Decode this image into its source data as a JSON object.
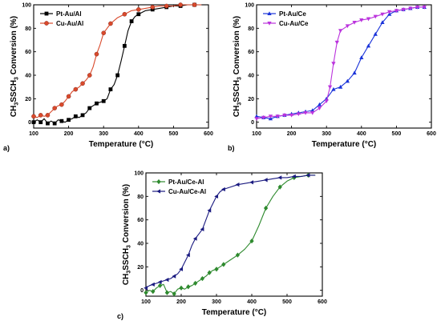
{
  "chart_data": [
    {
      "type": "line",
      "panel_label": "a)",
      "xlabel": "Temperature (°C)",
      "ylabel": "CH3SSCH3 Conversion (%)",
      "ylabel_parts": [
        "CH",
        "3",
        "SSCH",
        "3",
        " Conversion (%)"
      ],
      "xlim": [
        100,
        600
      ],
      "ylim": [
        -5,
        100
      ],
      "xticks": [
        100,
        200,
        300,
        400,
        500,
        600
      ],
      "yticks": [
        0,
        20,
        40,
        60,
        80,
        100
      ],
      "grid": false,
      "legend_position": "top-left",
      "series": [
        {
          "name": "Pt-Au/Al",
          "color": "#000000",
          "marker": "square",
          "x": [
            100,
            110,
            120,
            130,
            140,
            150,
            160,
            170,
            180,
            190,
            200,
            210,
            220,
            230,
            240,
            250,
            260,
            270,
            280,
            290,
            300,
            310,
            320,
            330,
            340,
            350,
            360,
            370,
            380,
            390,
            400,
            420,
            440,
            460,
            480,
            500,
            520,
            540,
            560,
            580
          ],
          "y": [
            0,
            2,
            0,
            3,
            -1,
            1,
            -1,
            2,
            1,
            0,
            2,
            3,
            5,
            4,
            6,
            8,
            12,
            14,
            16,
            17,
            18,
            20,
            28,
            32,
            40,
            52,
            65,
            78,
            86,
            90,
            92,
            95,
            96,
            97,
            98,
            99,
            99,
            100,
            100,
            100
          ]
        },
        {
          "name": "Cu-Au/Al",
          "color": "#d94a2c",
          "marker": "circle",
          "x": [
            100,
            110,
            120,
            130,
            140,
            150,
            160,
            170,
            180,
            190,
            200,
            210,
            220,
            230,
            240,
            250,
            260,
            270,
            280,
            290,
            300,
            310,
            320,
            340,
            360,
            380,
            400,
            420,
            440,
            460,
            480,
            500,
            520,
            540,
            560,
            580
          ],
          "y": [
            5,
            4,
            6,
            5,
            6,
            9,
            12,
            14,
            15,
            18,
            22,
            26,
            28,
            30,
            33,
            36,
            40,
            47,
            58,
            66,
            76,
            80,
            84,
            89,
            92,
            95,
            96,
            97,
            98,
            99,
            99,
            99,
            100,
            100,
            100,
            100
          ]
        }
      ]
    },
    {
      "type": "line",
      "panel_label": "b)",
      "xlabel": "Temperature (°C)",
      "ylabel": "CH3SSCH3 Conversion (%)",
      "ylabel_parts": [
        "CH",
        "3",
        "SSCH",
        "3",
        " Conversion (%)"
      ],
      "xlim": [
        100,
        600
      ],
      "ylim": [
        -5,
        100
      ],
      "xticks": [
        100,
        200,
        300,
        400,
        500,
        600
      ],
      "yticks": [
        0,
        20,
        40,
        60,
        80,
        100
      ],
      "grid": false,
      "legend_position": "top-left",
      "series": [
        {
          "name": "Pt-Au/Ce",
          "color": "#1a33d9",
          "marker": "triangle-up",
          "x": [
            100,
            120,
            140,
            160,
            180,
            200,
            220,
            240,
            260,
            280,
            300,
            320,
            340,
            360,
            380,
            400,
            420,
            440,
            460,
            480,
            500,
            520,
            540,
            560,
            580
          ],
          "y": [
            5,
            4,
            3,
            5,
            6,
            7,
            8,
            9,
            10,
            15,
            20,
            28,
            30,
            35,
            42,
            55,
            65,
            75,
            85,
            92,
            95,
            96,
            97,
            98,
            98
          ]
        },
        {
          "name": "Cu-Au/Ce",
          "color": "#bb33dd",
          "marker": "triangle-down",
          "x": [
            100,
            120,
            140,
            160,
            180,
            200,
            220,
            240,
            260,
            280,
            300,
            310,
            320,
            330,
            340,
            360,
            380,
            400,
            420,
            440,
            460,
            480,
            500,
            520,
            540,
            560,
            580
          ],
          "y": [
            3,
            4,
            5,
            5,
            6,
            6,
            7,
            8,
            8,
            12,
            18,
            30,
            50,
            68,
            78,
            82,
            85,
            87,
            88,
            90,
            92,
            94,
            95,
            96,
            97,
            98,
            98
          ]
        }
      ]
    },
    {
      "type": "line",
      "panel_label": "c)",
      "xlabel": "Temperature (°C)",
      "ylabel": "CH3SSCH3 Conversion (%)",
      "ylabel_parts": [
        "CH",
        "3",
        "SSCH",
        "3",
        " Conversion (%)"
      ],
      "xlim": [
        100,
        600
      ],
      "ylim": [
        -5,
        100
      ],
      "xticks": [
        100,
        200,
        300,
        400,
        500,
        600
      ],
      "yticks": [
        0,
        20,
        40,
        60,
        80,
        100
      ],
      "grid": false,
      "legend_position": "top-left",
      "series": [
        {
          "name": "Pt-Au/Ce-Al",
          "color": "#2e8a2e",
          "marker": "diamond",
          "x": [
            100,
            110,
            120,
            130,
            140,
            150,
            160,
            170,
            180,
            190,
            200,
            210,
            220,
            230,
            240,
            250,
            260,
            270,
            280,
            290,
            300,
            310,
            320,
            340,
            360,
            380,
            400,
            420,
            440,
            460,
            480,
            500,
            520,
            540,
            560,
            580
          ],
          "y": [
            -2,
            0,
            -1,
            2,
            4,
            5,
            -2,
            -1,
            -3,
            1,
            2,
            1,
            3,
            4,
            6,
            8,
            10,
            12,
            15,
            17,
            18,
            20,
            22,
            26,
            30,
            35,
            42,
            55,
            70,
            80,
            88,
            93,
            96,
            97,
            98,
            98
          ]
        },
        {
          "name": "Cu-Au/Ce-Al",
          "color": "#1a1a80",
          "marker": "triangle-left",
          "x": [
            100,
            110,
            120,
            130,
            140,
            150,
            160,
            170,
            180,
            190,
            200,
            210,
            220,
            230,
            240,
            250,
            260,
            270,
            280,
            290,
            300,
            310,
            320,
            340,
            360,
            380,
            400,
            420,
            440,
            460,
            480,
            500,
            520,
            540,
            560,
            580
          ],
          "y": [
            2,
            4,
            5,
            6,
            7,
            8,
            9,
            10,
            12,
            14,
            18,
            24,
            30,
            38,
            44,
            48,
            52,
            60,
            68,
            74,
            80,
            84,
            86,
            88,
            90,
            91,
            92,
            93,
            94,
            95,
            96,
            96,
            97,
            97,
            98,
            98
          ]
        }
      ]
    }
  ]
}
